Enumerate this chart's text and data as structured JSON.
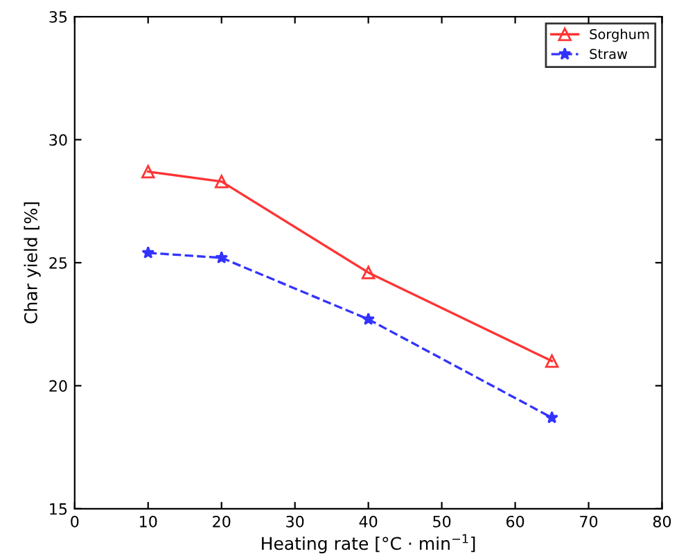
{
  "chart_data": {
    "type": "line",
    "xlabel": "Heating rate [°C · min$^{−1}$]",
    "ylabel": "Char yield [%]",
    "xlim": [
      0,
      80
    ],
    "xticks": [
      0,
      10,
      20,
      30,
      40,
      50,
      60,
      70,
      80
    ],
    "ylim": [
      15,
      35
    ],
    "yticks": [
      15,
      20,
      25,
      30,
      35
    ],
    "grid": false,
    "legend": "top right",
    "series": [
      {
        "name": "Sorghum",
        "color": "#ff3333",
        "x": [
          10,
          20,
          40,
          65
        ],
        "values": [
          28.7,
          28.3,
          24.6,
          21.0
        ],
        "marker": "triangle",
        "line_style": "solid"
      },
      {
        "name": "Straw",
        "color": "#3333ff",
        "x": [
          10,
          20,
          40,
          65
        ],
        "values": [
          25.4,
          25.2,
          22.7,
          18.7
        ],
        "marker": "star",
        "line_style": "dashed"
      }
    ]
  }
}
